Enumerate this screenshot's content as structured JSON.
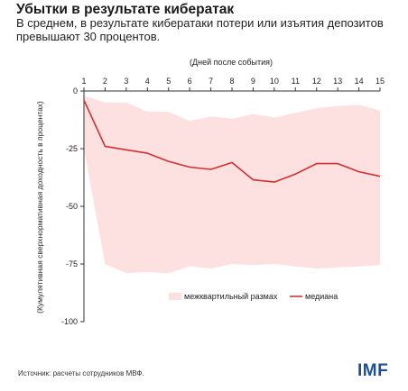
{
  "header": {
    "title": "Убытки в результате кибератак",
    "subtitle": "В среднем, в результате кибератаки потери или изъятия депозитов превышают 30 процентов."
  },
  "footer": {
    "source": "Источник: расчеты сотрудников МВФ.",
    "logo": "IMF"
  },
  "colors": {
    "band": "#fde0e0",
    "median": "#d32f2f",
    "axis": "#333333"
  },
  "chart_data": {
    "type": "line",
    "title": "",
    "xlabel": "(Дней после события)",
    "ylabel": "(Кумулятивная сверхнормативная доходность в процентах)",
    "x": [
      1,
      2,
      3,
      4,
      5,
      6,
      7,
      8,
      9,
      10,
      11,
      12,
      13,
      14,
      15
    ],
    "xlim": [
      1,
      15
    ],
    "ylim": [
      -100,
      0
    ],
    "yticks": [
      0,
      -25,
      -50,
      -75,
      -100
    ],
    "x_axis_position": "top",
    "grid": false,
    "legend": {
      "placement": "bottom",
      "entries": [
        {
          "key": "band",
          "label": "межквартильный размах"
        },
        {
          "key": "median",
          "label": "медиана"
        }
      ]
    },
    "band": {
      "name": "межквартильный размах",
      "upper": [
        -2,
        -5,
        -5,
        -9,
        -9,
        -13,
        -11,
        -12,
        -10,
        -11.5,
        -9.5,
        -7.5,
        -6.5,
        -6,
        -8.5
      ],
      "lower": [
        -25,
        -75,
        -79,
        -78.5,
        -79,
        -76,
        -77,
        -75,
        -75.5,
        -75,
        -76,
        -77,
        -76.5,
        -76,
        -75.5
      ]
    },
    "series": [
      {
        "name": "медиана",
        "values": [
          -4,
          -24,
          -25.5,
          -27,
          -30.5,
          -33,
          -34,
          -31,
          -38.5,
          -39.5,
          -36,
          -31.5,
          -31.5,
          -35,
          -37
        ]
      }
    ]
  }
}
